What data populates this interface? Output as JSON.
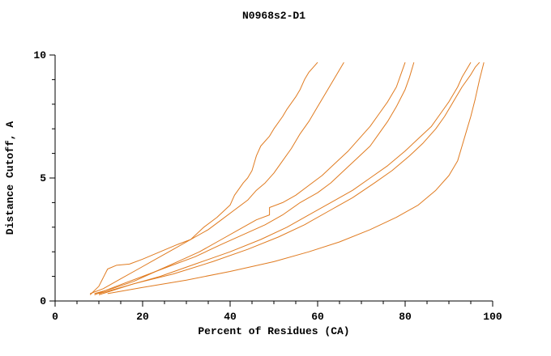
{
  "chart_data": {
    "type": "line",
    "title": "N0968s2-D1",
    "xlabel": "Percent of Residues (CA)",
    "ylabel": "Distance Cutoff, A",
    "xlim": [
      0,
      100
    ],
    "ylim": [
      0,
      10
    ],
    "xticks_major": [
      0,
      20,
      40,
      60,
      80,
      100
    ],
    "xticks_minor": [
      5,
      10,
      15,
      25,
      30,
      35,
      45,
      50,
      55,
      65,
      70,
      75,
      85,
      90,
      95
    ],
    "yticks_major": [
      0,
      5,
      10
    ],
    "yticks_minor": [
      1,
      2,
      3,
      4,
      6,
      7,
      8,
      9
    ],
    "grid": false,
    "legend": "none",
    "line_color": "#e07b20",
    "axis_color": "#000000",
    "background_color": "#ffffff",
    "series": [
      {
        "points": [
          [
            8,
            0.25
          ],
          [
            10,
            0.6
          ],
          [
            12,
            1.3
          ],
          [
            14,
            1.45
          ],
          [
            17,
            1.5
          ],
          [
            20,
            1.7
          ],
          [
            24,
            2.0
          ],
          [
            28,
            2.3
          ],
          [
            31,
            2.5
          ],
          [
            34,
            3.0
          ],
          [
            37,
            3.4
          ],
          [
            40,
            3.9
          ],
          [
            41,
            4.3
          ],
          [
            43,
            4.8
          ],
          [
            44,
            5.0
          ],
          [
            45,
            5.3
          ],
          [
            46,
            5.9
          ],
          [
            47,
            6.3
          ],
          [
            49,
            6.7
          ],
          [
            50,
            7.0
          ],
          [
            52,
            7.5
          ],
          [
            53,
            7.8
          ],
          [
            55,
            8.3
          ],
          [
            56,
            8.6
          ],
          [
            57,
            9.0
          ],
          [
            58,
            9.3
          ],
          [
            59,
            9.5
          ],
          [
            60,
            9.7
          ]
        ]
      },
      {
        "points": [
          [
            8,
            0.3
          ],
          [
            11,
            0.5
          ],
          [
            15,
            0.9
          ],
          [
            19,
            1.3
          ],
          [
            23,
            1.7
          ],
          [
            27,
            2.1
          ],
          [
            31,
            2.5
          ],
          [
            35,
            2.9
          ],
          [
            38,
            3.3
          ],
          [
            41,
            3.7
          ],
          [
            44,
            4.1
          ],
          [
            46,
            4.5
          ],
          [
            48,
            4.8
          ],
          [
            50,
            5.2
          ],
          [
            52,
            5.7
          ],
          [
            54,
            6.2
          ],
          [
            56,
            6.8
          ],
          [
            58,
            7.3
          ],
          [
            60,
            7.9
          ],
          [
            62,
            8.5
          ],
          [
            64,
            9.1
          ],
          [
            65,
            9.4
          ],
          [
            66,
            9.7
          ]
        ]
      },
      {
        "points": [
          [
            9,
            0.3
          ],
          [
            13,
            0.5
          ],
          [
            18,
            0.8
          ],
          [
            23,
            1.2
          ],
          [
            28,
            1.6
          ],
          [
            33,
            2.0
          ],
          [
            38,
            2.5
          ],
          [
            42,
            2.9
          ],
          [
            46,
            3.3
          ],
          [
            49,
            3.5
          ],
          [
            49,
            3.8
          ],
          [
            52,
            4.0
          ],
          [
            55,
            4.3
          ],
          [
            58,
            4.7
          ],
          [
            61,
            5.1
          ],
          [
            64,
            5.6
          ],
          [
            67,
            6.1
          ],
          [
            70,
            6.7
          ],
          [
            72,
            7.1
          ],
          [
            74,
            7.6
          ],
          [
            76,
            8.1
          ],
          [
            78,
            8.7
          ],
          [
            79,
            9.2
          ],
          [
            80,
            9.7
          ]
        ]
      },
      {
        "points": [
          [
            9,
            0.25
          ],
          [
            14,
            0.6
          ],
          [
            20,
            1.0
          ],
          [
            26,
            1.4
          ],
          [
            32,
            1.8
          ],
          [
            38,
            2.3
          ],
          [
            43,
            2.7
          ],
          [
            48,
            3.1
          ],
          [
            52,
            3.5
          ],
          [
            56,
            4.0
          ],
          [
            60,
            4.4
          ],
          [
            63,
            4.8
          ],
          [
            66,
            5.3
          ],
          [
            69,
            5.8
          ],
          [
            72,
            6.3
          ],
          [
            74,
            6.8
          ],
          [
            76,
            7.3
          ],
          [
            78,
            7.9
          ],
          [
            80,
            8.6
          ],
          [
            81,
            9.1
          ],
          [
            82,
            9.7
          ]
        ]
      },
      {
        "points": [
          [
            10,
            0.3
          ],
          [
            16,
            0.6
          ],
          [
            24,
            1.0
          ],
          [
            32,
            1.5
          ],
          [
            40,
            2.0
          ],
          [
            47,
            2.5
          ],
          [
            53,
            3.0
          ],
          [
            58,
            3.5
          ],
          [
            63,
            4.0
          ],
          [
            68,
            4.5
          ],
          [
            72,
            5.0
          ],
          [
            76,
            5.5
          ],
          [
            80,
            6.1
          ],
          [
            83,
            6.6
          ],
          [
            86,
            7.1
          ],
          [
            88,
            7.6
          ],
          [
            90,
            8.1
          ],
          [
            92,
            8.7
          ],
          [
            93,
            9.1
          ],
          [
            94,
            9.4
          ],
          [
            95,
            9.7
          ]
        ]
      },
      {
        "points": [
          [
            10,
            0.25
          ],
          [
            18,
            0.7
          ],
          [
            27,
            1.1
          ],
          [
            36,
            1.6
          ],
          [
            44,
            2.1
          ],
          [
            51,
            2.6
          ],
          [
            57,
            3.1
          ],
          [
            63,
            3.7
          ],
          [
            68,
            4.2
          ],
          [
            73,
            4.8
          ],
          [
            77,
            5.3
          ],
          [
            81,
            5.9
          ],
          [
            84,
            6.4
          ],
          [
            87,
            7.0
          ],
          [
            89,
            7.5
          ],
          [
            91,
            8.1
          ],
          [
            93,
            8.7
          ],
          [
            95,
            9.2
          ],
          [
            96,
            9.5
          ],
          [
            97,
            9.7
          ]
        ]
      },
      {
        "points": [
          [
            12,
            0.3
          ],
          [
            20,
            0.55
          ],
          [
            30,
            0.85
          ],
          [
            40,
            1.2
          ],
          [
            50,
            1.6
          ],
          [
            58,
            2.0
          ],
          [
            65,
            2.4
          ],
          [
            72,
            2.9
          ],
          [
            78,
            3.4
          ],
          [
            83,
            3.9
          ],
          [
            87,
            4.5
          ],
          [
            90,
            5.1
          ],
          [
            92,
            5.7
          ],
          [
            93,
            6.3
          ],
          [
            94,
            6.9
          ],
          [
            95,
            7.5
          ],
          [
            96,
            8.2
          ],
          [
            97,
            9.0
          ],
          [
            98,
            9.7
          ]
        ]
      }
    ]
  }
}
